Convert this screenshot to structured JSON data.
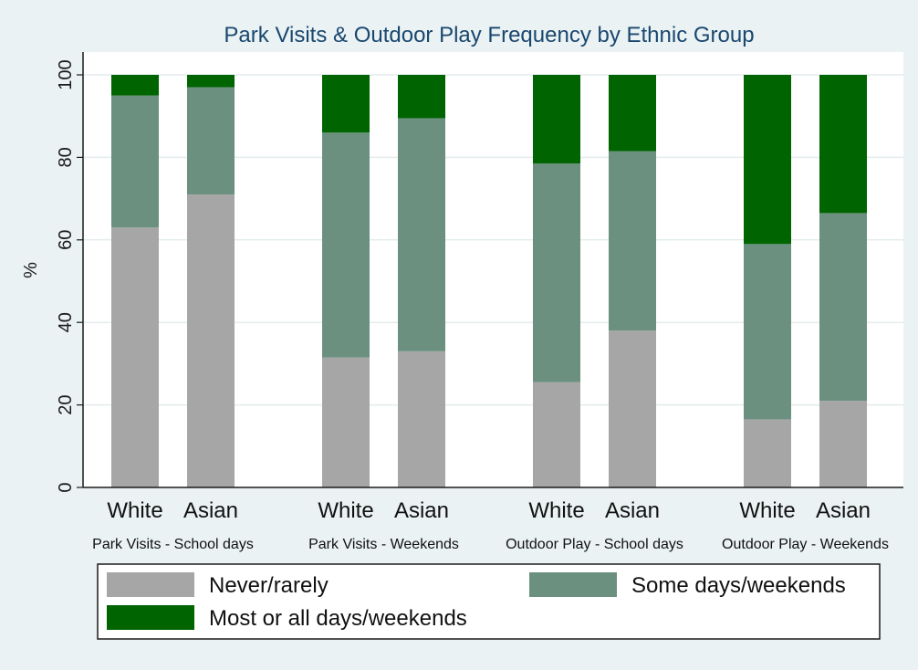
{
  "chart_data": {
    "type": "bar",
    "stacked": true,
    "title": "Park Visits & Outdoor Play Frequency by Ethnic Group",
    "ylabel": "%",
    "ylim": [
      0,
      100
    ],
    "yticks": [
      0,
      20,
      40,
      60,
      80,
      100
    ],
    "grid": true,
    "groups": [
      "Park Visits - School days",
      "Park Visits - Weekends",
      "Outdoor Play - School days",
      "Outdoor Play - Weekends"
    ],
    "categories": [
      "White",
      "Asian"
    ],
    "series": [
      {
        "name": "Never/rarely",
        "color": "#a6a6a6",
        "values": [
          [
            63,
            71
          ],
          [
            31.5,
            33
          ],
          [
            25.5,
            38
          ],
          [
            16.5,
            21
          ]
        ]
      },
      {
        "name": "Some days/weekends",
        "color": "#6b9080",
        "values": [
          [
            32,
            26
          ],
          [
            54.5,
            56.5
          ],
          [
            53,
            43.5
          ],
          [
            42.5,
            45.5
          ]
        ]
      },
      {
        "name": "Most or all days/weekends",
        "color": "#006400",
        "values": [
          [
            5,
            3
          ],
          [
            14,
            10.5
          ],
          [
            21.5,
            18.5
          ],
          [
            41,
            33.5
          ]
        ]
      }
    ],
    "legend_position": "bottom"
  }
}
